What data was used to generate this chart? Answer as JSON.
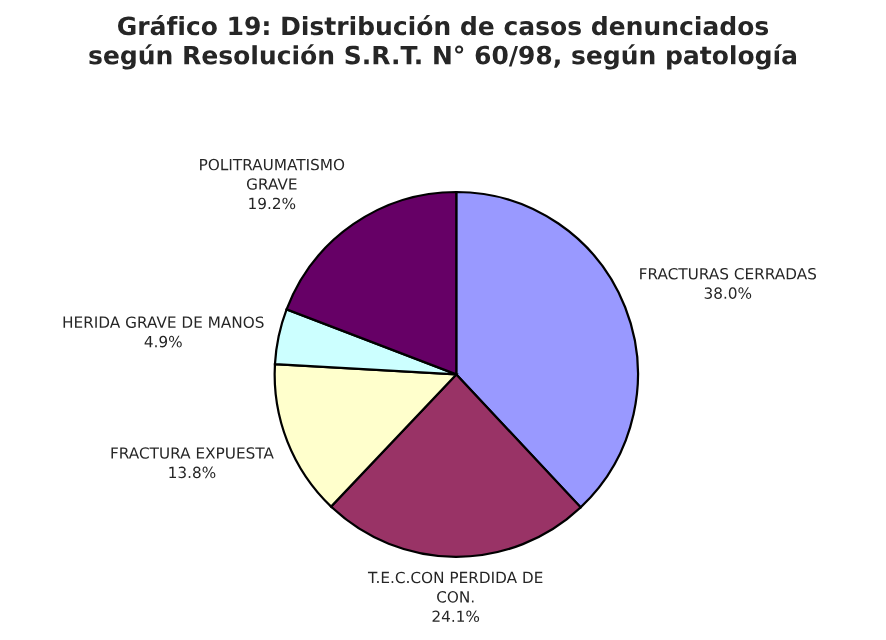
{
  "chart_data": {
    "type": "pie",
    "title": "Gráfico 19: Distribución de casos denunciados\nsegún Resolución S.R.T. N° 60/98, según patología",
    "categories": [
      "FRACTURAS CERRADAS",
      "T.E.C.CON PERDIDA DE\nCON.",
      "FRACTURA EXPUESTA",
      "HERIDA GRAVE DE MANOS",
      "POLITRAUMATISMO\nGRAVE"
    ],
    "values": [
      38.0,
      24.1,
      13.8,
      4.9,
      19.2
    ],
    "colors": [
      "#9999ff",
      "#993366",
      "#ffffcc",
      "#ccffff",
      "#660066"
    ],
    "value_labels": [
      "38.0%",
      "24.1%",
      "13.8%",
      "4.9%",
      "19.2%"
    ]
  }
}
